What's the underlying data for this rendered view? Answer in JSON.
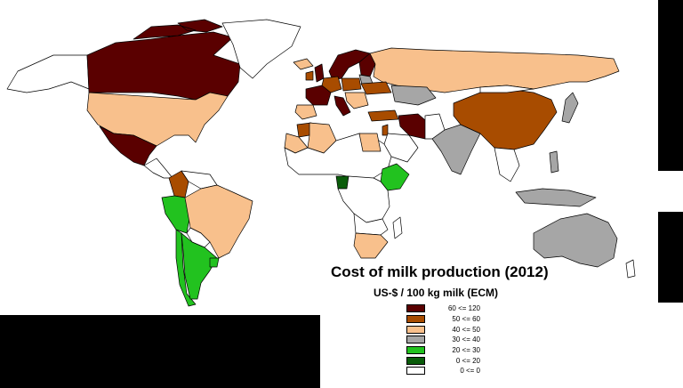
{
  "map": {
    "title": "Cost of milk production (2012)",
    "subtitle": "US-$ / 100 kg milk (ECM)",
    "legend": [
      {
        "label": "60 <= 120",
        "color": "#5a0000"
      },
      {
        "label": "50 <= 60",
        "color": "#a84c00"
      },
      {
        "label": "40 <= 50",
        "color": "#f8c08c"
      },
      {
        "label": "30 <= 40",
        "color": "#a6a6a6"
      },
      {
        "label": "20 <= 30",
        "color": "#22c21f"
      },
      {
        "label": "0 <= 20",
        "color": "#0a5c0a"
      },
      {
        "label": "0 <= 0",
        "color": "#ffffff"
      }
    ],
    "colors": {
      "ocean": "#ffffff",
      "land_nodata": "#ffffff",
      "border": "#000000",
      "frame": "#000000"
    }
  }
}
